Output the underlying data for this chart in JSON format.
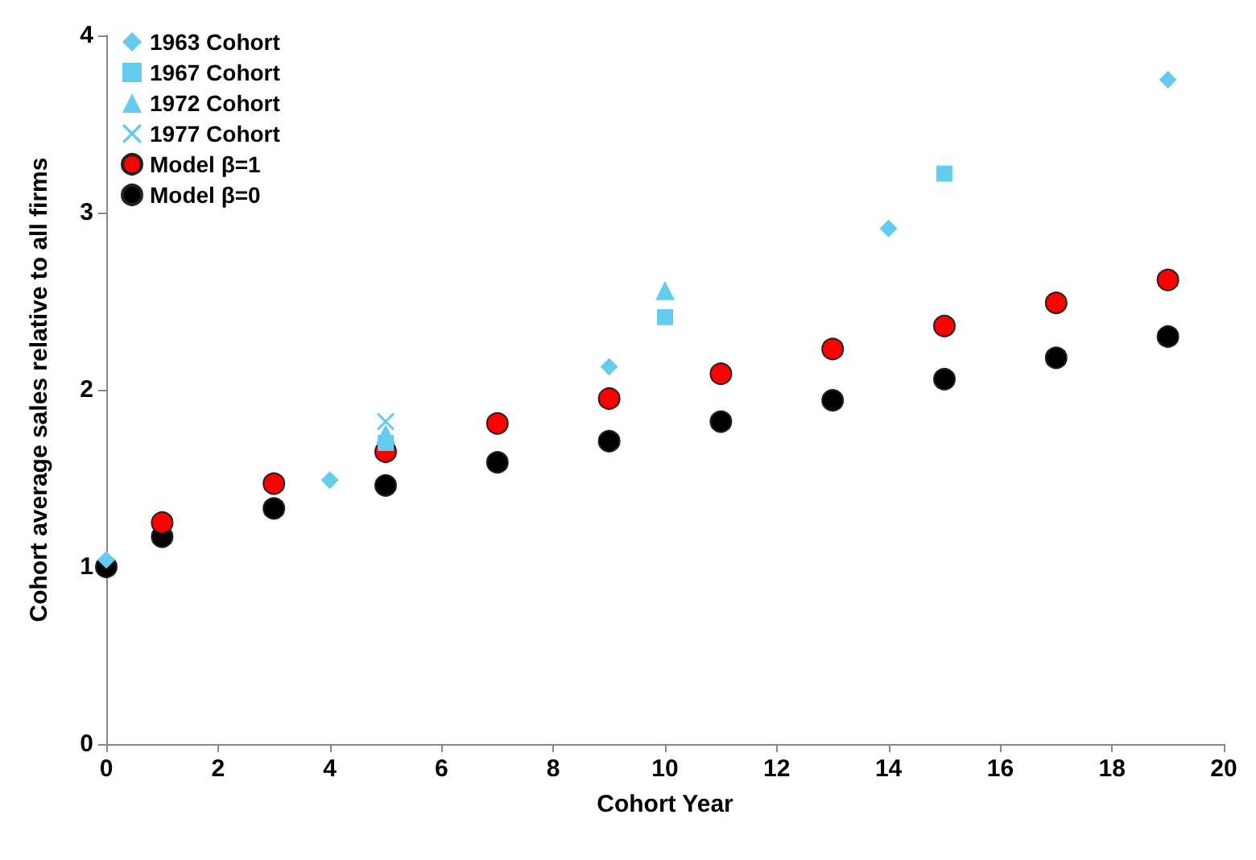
{
  "chart_data": {
    "type": "scatter",
    "xlabel": "Cohort Year",
    "ylabel": "Cohort average sales relative to all firms",
    "xlim": [
      0,
      20
    ],
    "xticks": [
      0,
      2,
      4,
      6,
      8,
      10,
      12,
      14,
      16,
      18,
      20
    ],
    "ylim": [
      0,
      4
    ],
    "yticks": [
      0,
      1,
      2,
      3,
      4
    ],
    "grid": false,
    "legend": "top left",
    "series": [
      {
        "name": "1963 Cohort",
        "color": "#66ccee",
        "marker": "diamond",
        "x": [
          0,
          4,
          9,
          14,
          19
        ],
        "values": [
          1.04,
          1.49,
          2.13,
          2.91,
          3.75
        ]
      },
      {
        "name": "1967 Cohort",
        "color": "#66ccee",
        "marker": "square",
        "x": [
          5,
          10,
          15
        ],
        "values": [
          1.7,
          2.41,
          3.22
        ]
      },
      {
        "name": "1972 Cohort",
        "color": "#66ccee",
        "marker": "triangle",
        "x": [
          5,
          10
        ],
        "values": [
          1.75,
          2.56
        ]
      },
      {
        "name": "1977 Cohort",
        "color": "#66ccee",
        "marker": "cross",
        "x": [
          5
        ],
        "values": [
          1.82
        ]
      },
      {
        "name": "Model β=1",
        "color": "#ff0000",
        "marker": "circle",
        "x": [
          1,
          3,
          5,
          7,
          9,
          11,
          13,
          15,
          17,
          19
        ],
        "values": [
          1.25,
          1.47,
          1.65,
          1.81,
          1.95,
          2.09,
          2.23,
          2.36,
          2.49,
          2.62
        ]
      },
      {
        "name": "Model β=0",
        "color": "#000000",
        "marker": "circle",
        "x": [
          0,
          1,
          3,
          5,
          7,
          9,
          11,
          13,
          15,
          17,
          19
        ],
        "values": [
          1.0,
          1.17,
          1.33,
          1.46,
          1.59,
          1.71,
          1.82,
          1.94,
          2.06,
          2.18,
          2.3
        ]
      }
    ]
  }
}
